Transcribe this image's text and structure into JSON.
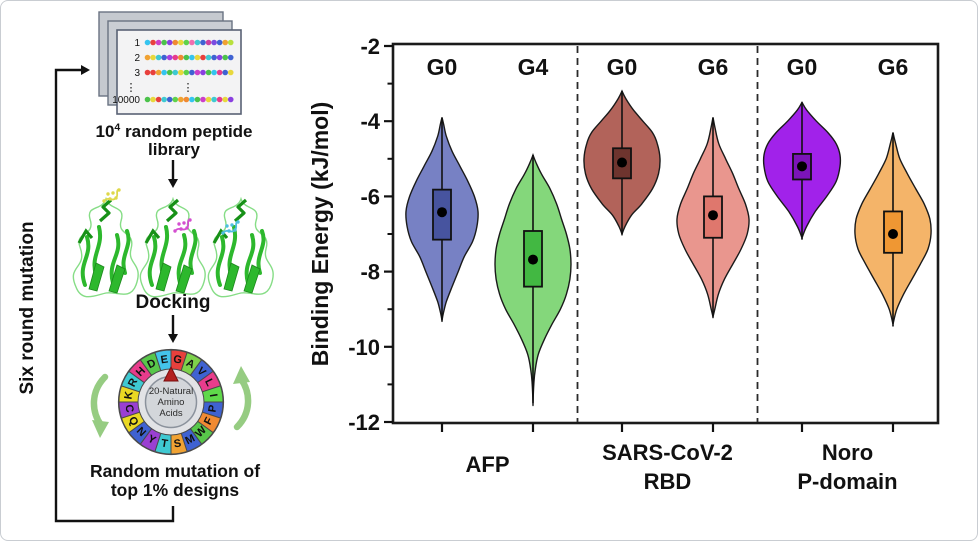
{
  "workflow": {
    "side_label": "Six round mutation",
    "library": {
      "caption_base": "10",
      "caption_sup": "4",
      "caption_rest": " random peptide",
      "caption_line2": "library",
      "ellipsis": "⋮",
      "rows": [
        {
          "label": "1",
          "dots": [
            "#35c4ef",
            "#e8403c",
            "#cc3fc9",
            "#4bc24b",
            "#8a3fe0",
            "#f08a33",
            "#e8d83c",
            "#5fd24b",
            "#ef6fb0",
            "#3fc9d2",
            "#3f62d2",
            "#cc3fa0",
            "#7a4be0",
            "#3f62d2",
            "#f0a233",
            "#b8e03c"
          ]
        },
        {
          "label": "2",
          "dots": [
            "#f0a233",
            "#e8d83c",
            "#3fc9d2",
            "#3f62d2",
            "#a83fe0",
            "#e83c8c",
            "#f08a33",
            "#4bc24b",
            "#35c4ef",
            "#e8d83c",
            "#e8403c",
            "#3fc9d2",
            "#3f62d2",
            "#8a3fe0",
            "#4bc24b",
            "#3f62d2"
          ]
        },
        {
          "label": "3",
          "dots": [
            "#e8403c",
            "#e8403c",
            "#f0a233",
            "#35c4ef",
            "#4bc24b",
            "#3fc9d2",
            "#e8d83c",
            "#5fd24b",
            "#3f62d2",
            "#cc3fc9",
            "#8a3fe0",
            "#4bc24b",
            "#35c4ef",
            "#e83c8c",
            "#3f62d2",
            "#e8d83c"
          ]
        },
        {
          "label": "10000",
          "dots": [
            "#4bc24b",
            "#e8d83c",
            "#e8403c",
            "#3fc9d2",
            "#3f62d2",
            "#5fd24b",
            "#f0a233",
            "#f08a33",
            "#35c4ef",
            "#4bc24b",
            "#cc3fc9",
            "#e8d83c",
            "#3fc9d2",
            "#e83c8c",
            "#e8d83c",
            "#8a3fe0"
          ]
        }
      ]
    },
    "docking": {
      "label": "Docking",
      "ligand_colors": [
        "#ded84a",
        "#d44fd0",
        "#4fbfe0"
      ]
    },
    "wheel": {
      "center_lines": [
        "20-Natural",
        "Amino",
        "Acids"
      ],
      "pointer_color": "#b32020",
      "rotation_arrow_color": "#96cc82",
      "letters": [
        {
          "ch": "G",
          "color": "#e8403c"
        },
        {
          "ch": "A",
          "color": "#7dd24b"
        },
        {
          "ch": "V",
          "color": "#3f62d2"
        },
        {
          "ch": "L",
          "color": "#e83c8c"
        },
        {
          "ch": "I",
          "color": "#5fd94a"
        },
        {
          "ch": "P",
          "color": "#3f62d2"
        },
        {
          "ch": "F",
          "color": "#f08a33"
        },
        {
          "ch": "W",
          "color": "#58c74a"
        },
        {
          "ch": "M",
          "color": "#3f62d2"
        },
        {
          "ch": "S",
          "color": "#f0a233"
        },
        {
          "ch": "T",
          "color": "#3fc9d2"
        },
        {
          "ch": "Y",
          "color": "#9a3fd2"
        },
        {
          "ch": "N",
          "color": "#3f62d2"
        },
        {
          "ch": "Q",
          "color": "#ead823"
        },
        {
          "ch": "C",
          "color": "#9a3fd2"
        },
        {
          "ch": "K",
          "color": "#ead823"
        },
        {
          "ch": "R",
          "color": "#3fc9d2"
        },
        {
          "ch": "H",
          "color": "#e83c8c"
        },
        {
          "ch": "D",
          "color": "#58c74a"
        },
        {
          "ch": "E",
          "color": "#44c3ea"
        }
      ]
    },
    "mutation_caption": [
      "Random mutation of",
      "top 1% designs"
    ]
  },
  "chart_data": {
    "type": "violin",
    "title": "",
    "ylabel": "Binding Energy (kJ/mol)",
    "ylim": [
      -12,
      -2
    ],
    "yticks": [
      -2,
      -4,
      -6,
      -8,
      -10,
      -12
    ],
    "minor_yticks": [
      -3,
      -5,
      -7,
      -9,
      -11
    ],
    "grid": false,
    "separators": "dashed vertical lines between groups",
    "groups": [
      {
        "label_lines": [
          "AFP"
        ]
      },
      {
        "label_lines": [
          "SARS-CoV-2",
          "RBD"
        ]
      },
      {
        "label_lines": [
          "Noro",
          "P-domain"
        ]
      }
    ],
    "violins": [
      {
        "group": "AFP",
        "generation": "G0",
        "fill": "#7781c4",
        "box_fill": "#47549f",
        "stats": {
          "whisker_top": -3.9,
          "box_top": -5.82,
          "mean": -6.42,
          "box_bottom": -7.15,
          "whisker_bottom": -9.3
        },
        "profile": [
          [
            -3.9,
            0
          ],
          [
            -4.1,
            0.05
          ],
          [
            -4.4,
            0.12
          ],
          [
            -4.8,
            0.28
          ],
          [
            -5.2,
            0.5
          ],
          [
            -5.6,
            0.72
          ],
          [
            -6.0,
            0.9
          ],
          [
            -6.4,
            1.0
          ],
          [
            -6.8,
            0.97
          ],
          [
            -7.2,
            0.85
          ],
          [
            -7.6,
            0.62
          ],
          [
            -8.0,
            0.45
          ],
          [
            -8.4,
            0.28
          ],
          [
            -8.8,
            0.12
          ],
          [
            -9.1,
            0.04
          ],
          [
            -9.3,
            0
          ]
        ]
      },
      {
        "group": "AFP",
        "generation": "G4",
        "fill": "#84d77b",
        "box_fill": "#42b842",
        "stats": {
          "whisker_top": -4.9,
          "box_top": -6.92,
          "mean": -7.68,
          "box_bottom": -8.4,
          "whisker_bottom": -11.5
        },
        "profile": [
          [
            -4.9,
            0
          ],
          [
            -5.1,
            0.08
          ],
          [
            -5.4,
            0.22
          ],
          [
            -5.8,
            0.45
          ],
          [
            -6.2,
            0.62
          ],
          [
            -6.6,
            0.75
          ],
          [
            -7.0,
            0.88
          ],
          [
            -7.4,
            0.97
          ],
          [
            -7.8,
            1.0
          ],
          [
            -8.2,
            0.97
          ],
          [
            -8.6,
            0.88
          ],
          [
            -9.0,
            0.72
          ],
          [
            -9.4,
            0.5
          ],
          [
            -9.8,
            0.3
          ],
          [
            -10.2,
            0.14
          ],
          [
            -10.6,
            0.06
          ],
          [
            -11.0,
            0.02
          ],
          [
            -11.5,
            0
          ]
        ]
      },
      {
        "group": "SARS-CoV-2 RBD",
        "generation": "G0",
        "fill": "#b2635a",
        "box_fill": "#6e342e",
        "stats": {
          "whisker_top": -3.2,
          "box_top": -4.72,
          "mean": -5.1,
          "box_bottom": -5.52,
          "whisker_bottom": -7.0
        },
        "profile": [
          [
            -3.2,
            0
          ],
          [
            -3.4,
            0.1
          ],
          [
            -3.7,
            0.3
          ],
          [
            -4.0,
            0.55
          ],
          [
            -4.3,
            0.8
          ],
          [
            -4.6,
            0.93
          ],
          [
            -5.0,
            1.0
          ],
          [
            -5.4,
            0.96
          ],
          [
            -5.8,
            0.8
          ],
          [
            -6.2,
            0.52
          ],
          [
            -6.5,
            0.25
          ],
          [
            -6.8,
            0.08
          ],
          [
            -7.0,
            0
          ]
        ]
      },
      {
        "group": "SARS-CoV-2 RBD",
        "generation": "G6",
        "fill": "#e9968e",
        "box_fill": "#df776d",
        "stats": {
          "whisker_top": -3.9,
          "box_top": -6.0,
          "mean": -6.5,
          "box_bottom": -7.1,
          "whisker_bottom": -9.2
        },
        "profile": [
          [
            -3.9,
            0
          ],
          [
            -4.2,
            0.06
          ],
          [
            -4.6,
            0.16
          ],
          [
            -5.0,
            0.35
          ],
          [
            -5.4,
            0.55
          ],
          [
            -5.8,
            0.72
          ],
          [
            -6.2,
            0.9
          ],
          [
            -6.6,
            1.0
          ],
          [
            -7.0,
            0.95
          ],
          [
            -7.4,
            0.78
          ],
          [
            -7.8,
            0.55
          ],
          [
            -8.2,
            0.32
          ],
          [
            -8.6,
            0.15
          ],
          [
            -9.0,
            0.05
          ],
          [
            -9.2,
            0
          ]
        ]
      },
      {
        "group": "Noro P-domain",
        "generation": "G0",
        "fill": "#a122ea",
        "box_fill": "#7b14b8",
        "stats": {
          "whisker_top": -3.5,
          "box_top": -4.87,
          "mean": -5.2,
          "box_bottom": -5.55,
          "whisker_bottom": -7.1
        },
        "profile": [
          [
            -3.5,
            0
          ],
          [
            -3.7,
            0.12
          ],
          [
            -4.0,
            0.38
          ],
          [
            -4.3,
            0.68
          ],
          [
            -4.6,
            0.9
          ],
          [
            -4.9,
            1.0
          ],
          [
            -5.2,
            1.0
          ],
          [
            -5.6,
            0.9
          ],
          [
            -6.0,
            0.65
          ],
          [
            -6.4,
            0.35
          ],
          [
            -6.8,
            0.12
          ],
          [
            -7.1,
            0
          ]
        ]
      },
      {
        "group": "Noro P-domain",
        "generation": "G6",
        "fill": "#f4b469",
        "box_fill": "#ef9733",
        "stats": {
          "whisker_top": -4.3,
          "box_top": -6.4,
          "mean": -7.0,
          "box_bottom": -7.5,
          "whisker_bottom": -9.4
        },
        "profile": [
          [
            -4.3,
            0
          ],
          [
            -4.6,
            0.07
          ],
          [
            -5.0,
            0.18
          ],
          [
            -5.4,
            0.38
          ],
          [
            -5.8,
            0.6
          ],
          [
            -6.2,
            0.82
          ],
          [
            -6.6,
            0.97
          ],
          [
            -7.0,
            1.0
          ],
          [
            -7.4,
            0.92
          ],
          [
            -7.8,
            0.72
          ],
          [
            -8.2,
            0.5
          ],
          [
            -8.6,
            0.28
          ],
          [
            -9.0,
            0.1
          ],
          [
            -9.4,
            0
          ]
        ]
      }
    ]
  }
}
